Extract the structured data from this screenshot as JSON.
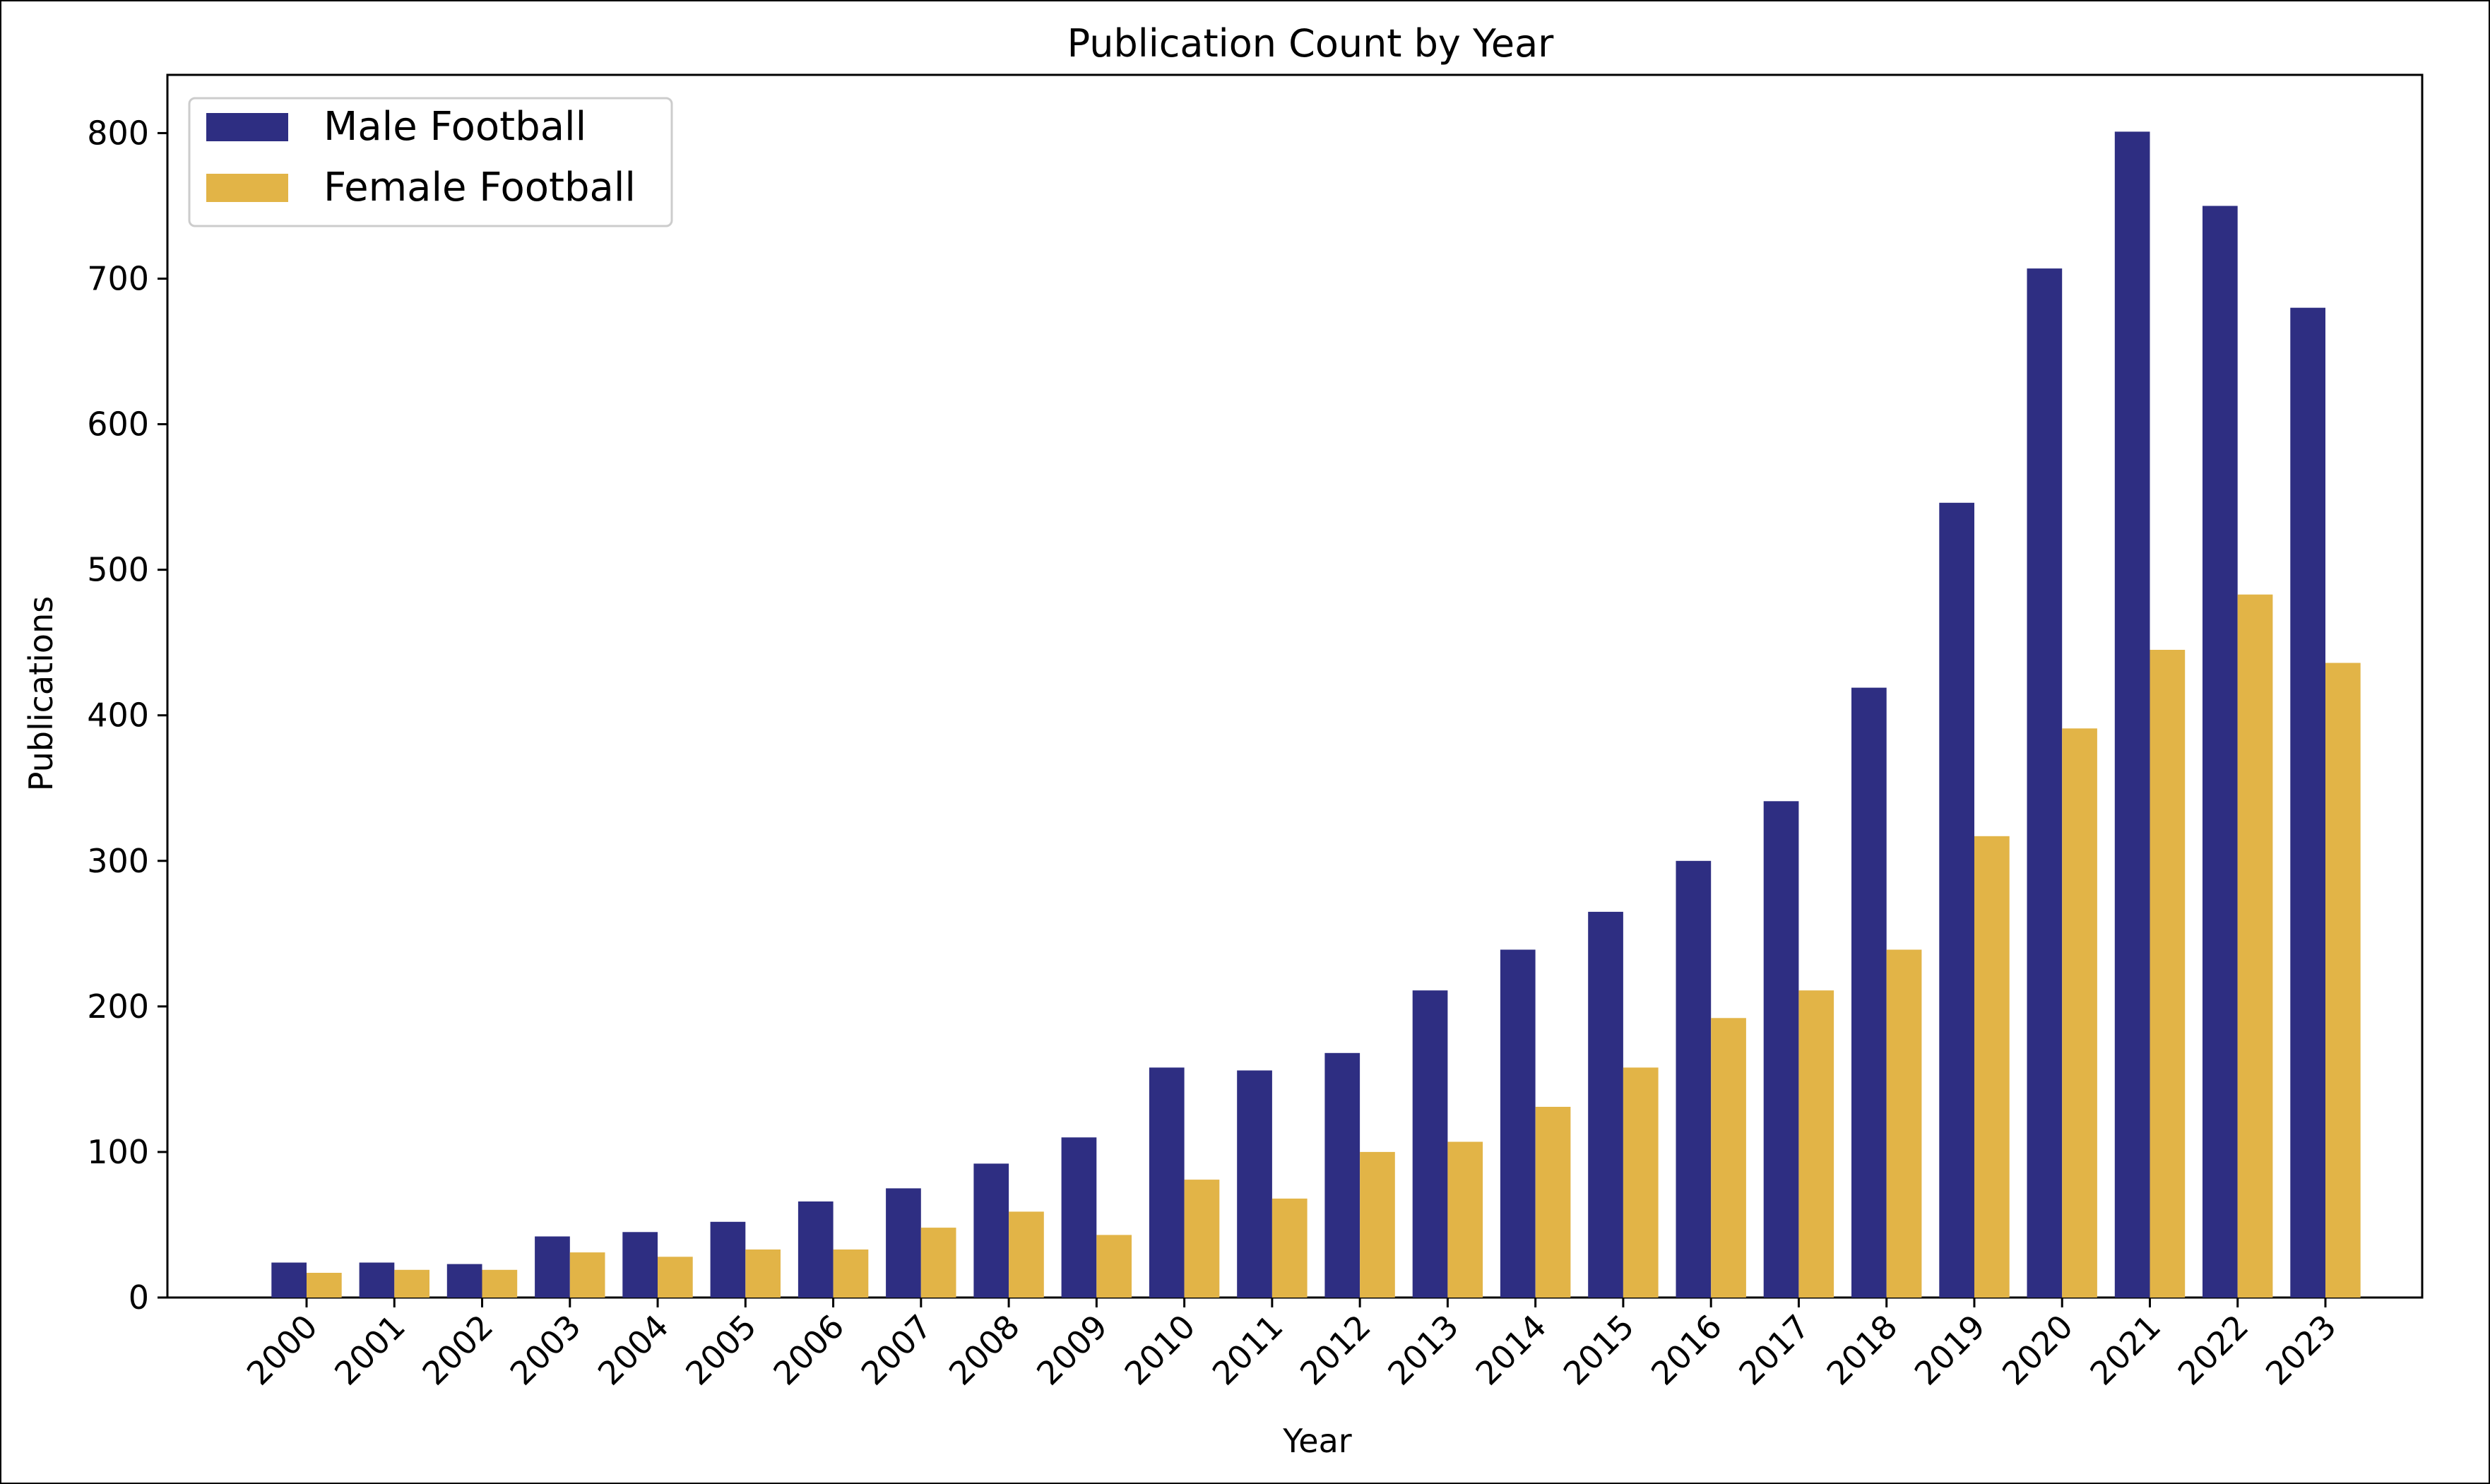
{
  "chart_data": {
    "type": "bar",
    "title": "Publication Count by Year",
    "xlabel": "Year",
    "ylabel": "Publications",
    "ylim": [
      0,
      840
    ],
    "yticks": [
      0,
      100,
      200,
      300,
      400,
      500,
      600,
      700,
      800
    ],
    "grid": false,
    "legend_position": "top-left",
    "categories": [
      "2000",
      "2001",
      "2002",
      "2003",
      "2004",
      "2005",
      "2006",
      "2007",
      "2008",
      "2009",
      "2010",
      "2011",
      "2012",
      "2013",
      "2014",
      "2015",
      "2016",
      "2017",
      "2018",
      "2019",
      "2020",
      "2021",
      "2022",
      "2023"
    ],
    "series": [
      {
        "name": "Male Football",
        "color": "#2e2e82",
        "values": [
          24,
          24,
          23,
          42,
          45,
          52,
          66,
          75,
          92,
          110,
          158,
          156,
          168,
          211,
          239,
          265,
          300,
          341,
          419,
          546,
          707,
          801,
          750,
          680
        ]
      },
      {
        "name": "Female Football",
        "color": "#e2b447",
        "values": [
          17,
          19,
          19,
          31,
          28,
          33,
          33,
          48,
          59,
          43,
          81,
          68,
          100,
          107,
          131,
          158,
          192,
          211,
          239,
          317,
          391,
          445,
          483,
          436
        ]
      }
    ]
  }
}
